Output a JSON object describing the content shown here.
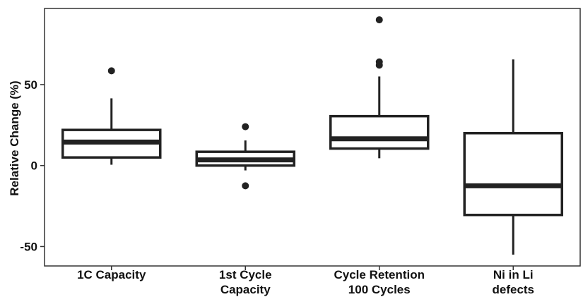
{
  "chart_data": {
    "type": "box",
    "title": "",
    "xlabel": "",
    "ylabel": "Relative Change (%)",
    "ylim": [
      -62,
      97
    ],
    "yticks": [
      -50,
      0,
      50
    ],
    "ytick_labels": [
      "-50",
      "0",
      "50"
    ],
    "grid": false,
    "categories": [
      {
        "lines": [
          "1C Capacity"
        ]
      },
      {
        "lines": [
          "1st Cycle",
          "Capacity"
        ]
      },
      {
        "lines": [
          "Cycle Retention",
          "100 Cycles"
        ]
      },
      {
        "lines": [
          "Ni in Li",
          "defects"
        ]
      }
    ],
    "boxes": [
      {
        "whisker_low": 0.5,
        "q1": 5,
        "median": 14.5,
        "q3": 22,
        "whisker_high": 41.5,
        "outliers": [
          58.5
        ]
      },
      {
        "whisker_low": -3,
        "q1": 0,
        "median": 3.5,
        "q3": 8.5,
        "whisker_high": 15.5,
        "outliers": [
          24,
          -12.5
        ]
      },
      {
        "whisker_low": 4.5,
        "q1": 10.5,
        "median": 16.5,
        "q3": 30.5,
        "whisker_high": 55,
        "outliers": [
          90,
          64,
          62
        ]
      },
      {
        "whisker_low": -55,
        "q1": -30.5,
        "median": -12.5,
        "q3": 20,
        "whisker_high": 65.5,
        "outliers": []
      }
    ],
    "colors": {
      "line": "#222222",
      "outlier": "#222222"
    }
  }
}
